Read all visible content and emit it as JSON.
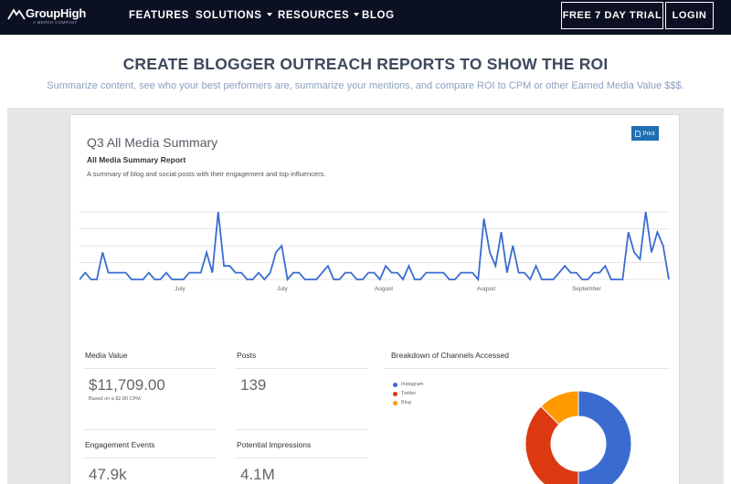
{
  "nav": {
    "logo_text": "GroupHigh",
    "logo_sub": "A MERCH COMPANY",
    "items": [
      {
        "label": "FEATURES",
        "has_caret": false
      },
      {
        "label": "SOLUTIONS",
        "has_caret": true
      },
      {
        "label": "RESOURCES",
        "has_caret": true
      },
      {
        "label": "BLOG",
        "has_caret": false
      }
    ],
    "trial_label": "FREE 7 DAY TRIAL",
    "login_label": "LOGIN"
  },
  "hero": {
    "title": "CREATE BLOGGER OUTREACH REPORTS TO SHOW THE ROI",
    "subtitle": "Summarize content, see who your best performers are, summarize your mentions, and compare ROI to CPM or other Earned Media Value $$$."
  },
  "report": {
    "title": "Q3 All Media Summary",
    "subtitle": "All Media Summary Report",
    "description": "A summary of blog and social posts with their engagement and top influencers.",
    "print_label": "Print",
    "print_icon": "document-icon"
  },
  "chart_data": [
    {
      "type": "line",
      "x_tick_labels": [
        "July",
        "July",
        "August",
        "August",
        "September"
      ],
      "grid": true,
      "color": "#3a6cd0",
      "values": [
        0,
        1,
        0,
        0,
        4,
        1,
        1,
        1,
        1,
        0,
        0,
        0,
        1,
        0,
        0,
        1,
        0,
        0,
        0,
        1,
        1,
        1,
        4,
        1,
        10,
        2,
        2,
        1,
        1,
        0,
        0,
        1,
        0,
        1,
        4,
        5,
        0,
        1,
        1,
        0,
        0,
        0,
        1,
        2,
        0,
        0,
        1,
        1,
        0,
        0,
        1,
        1,
        0,
        2,
        1,
        1,
        0,
        2,
        0,
        0,
        1,
        1,
        1,
        1,
        0,
        0,
        1,
        1,
        1,
        0,
        9,
        4,
        2,
        7,
        1,
        5,
        1,
        1,
        0,
        2,
        0,
        0,
        0,
        1,
        2,
        1,
        1,
        0,
        0,
        1,
        1,
        2,
        0,
        0,
        0,
        7,
        4,
        3,
        10,
        4,
        7,
        5,
        0
      ]
    },
    {
      "type": "pie",
      "title": "Breakdown of Channels Accessed",
      "categories": [
        "Instagram",
        "Twitter",
        "Blog"
      ],
      "values": [
        0.5,
        0.375,
        0.125
      ],
      "colors": [
        "#3a6cd0",
        "#dc3912",
        "#ff9900"
      ],
      "donut": true,
      "legend_position": "left"
    }
  ],
  "stats": {
    "media_value": {
      "label": "Media Value",
      "value": "$11,709.00",
      "note": "Based on a $2.80 CPM"
    },
    "posts": {
      "label": "Posts",
      "value": "139"
    },
    "engagement": {
      "label": "Engagement Events",
      "value": "47.9k"
    },
    "impressions": {
      "label": "Potential Impressions",
      "value": "4.1M"
    },
    "breakdown": {
      "label": "Breakdown of Channels Accessed"
    }
  },
  "legend": [
    "Instagram",
    "Twitter",
    "Blog"
  ]
}
